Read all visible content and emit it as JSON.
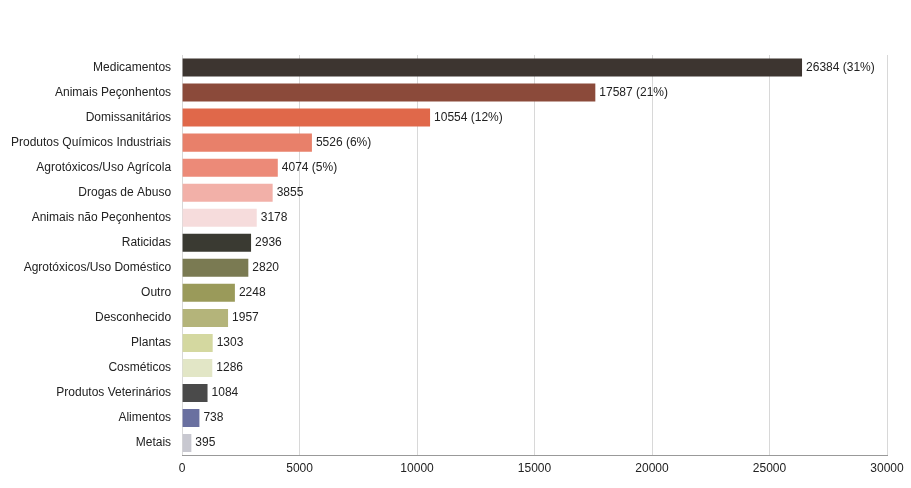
{
  "chart_data": {
    "type": "bar",
    "orientation": "horizontal",
    "categories": [
      "Medicamentos",
      "Animais Peçonhentos",
      "Domissanitários",
      "Produtos Químicos Industriais",
      "Agrotóxicos/Uso Agrícola",
      "Drogas de Abuso",
      "Animais não Peçonhentos",
      "Raticidas",
      "Agrotóxicos/Uso Doméstico",
      "Outro",
      "Desconhecido",
      "Plantas",
      "Cosméticos",
      "Produtos Veterinários",
      "Alimentos",
      "Metais"
    ],
    "values": [
      26384,
      17587,
      10554,
      5526,
      4074,
      3855,
      3178,
      2936,
      2820,
      2248,
      1957,
      1303,
      1286,
      1084,
      738,
      395
    ],
    "value_labels": [
      "26384 (31%)",
      "17587 (21%)",
      "10554 (12%)",
      "5526 (6%)",
      "4074 (5%)",
      "3855",
      "3178",
      "2936",
      "2820",
      "2248",
      "1957",
      "1303",
      "1286",
      "1084",
      "738",
      "395"
    ],
    "colors": [
      "#3d3530",
      "#8b4a3a",
      "#e0684a",
      "#e8806a",
      "#ec8a78",
      "#f2b0a8",
      "#f6dcdc",
      "#3a3a32",
      "#7a7a52",
      "#9a9a5a",
      "#b4b47a",
      "#d4d8a0",
      "#e2e6c6",
      "#4a4a4a",
      "#6a70a0",
      "#c8c8d0"
    ],
    "xlim": [
      0,
      30000
    ],
    "xticks": [
      0,
      5000,
      10000,
      15000,
      20000,
      25000,
      30000
    ],
    "grid": true,
    "data_labels": true
  }
}
